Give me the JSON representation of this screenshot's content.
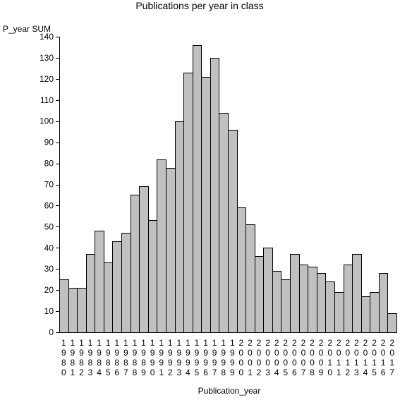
{
  "chart_data": {
    "type": "bar",
    "title": "Publications per year in class",
    "ylabel": "P_year SUM",
    "xlabel": "Publication_year",
    "ylim": [
      0,
      140
    ],
    "y_ticks": [
      0,
      10,
      20,
      30,
      40,
      50,
      60,
      70,
      80,
      90,
      100,
      110,
      120,
      130,
      140
    ],
    "categories": [
      "1980",
      "1981",
      "1982",
      "1983",
      "1984",
      "1985",
      "1986",
      "1987",
      "1988",
      "1989",
      "1990",
      "1991",
      "1992",
      "1993",
      "1994",
      "1995",
      "1996",
      "1997",
      "1998",
      "1999",
      "2000",
      "2001",
      "2002",
      "2003",
      "2004",
      "2005",
      "2006",
      "2007",
      "2008",
      "2009",
      "2010",
      "2011",
      "2012",
      "2013",
      "2014",
      "2015",
      "2016",
      "2017"
    ],
    "values": [
      25,
      21,
      21,
      37,
      48,
      33,
      43,
      47,
      65,
      69,
      53,
      82,
      78,
      100,
      123,
      136,
      121,
      130,
      104,
      96,
      59,
      51,
      36,
      40,
      29,
      25,
      37,
      32,
      31,
      28,
      24,
      19,
      32,
      37,
      17,
      19,
      28,
      9
    ],
    "bar_color": "#c0c0c0",
    "grid": false,
    "legend": "none"
  }
}
